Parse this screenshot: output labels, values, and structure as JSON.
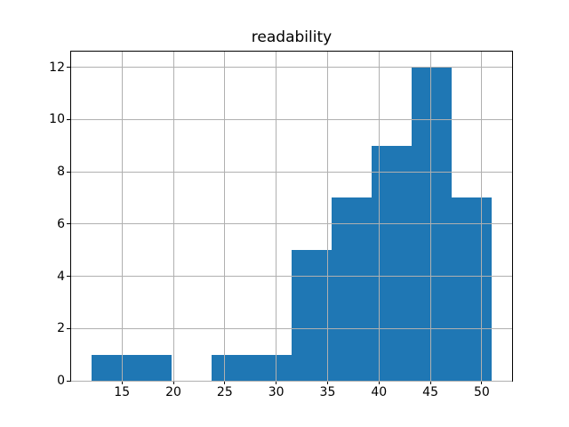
{
  "figure": {
    "background": "#ffffff"
  },
  "chart_data": {
    "type": "bar",
    "subtype": "histogram",
    "title": "readability",
    "xlabel": "",
    "ylabel": "",
    "bin_edges": [
      12.0,
      15.9,
      19.8,
      23.7,
      27.6,
      31.5,
      35.4,
      39.3,
      43.2,
      47.1,
      51.0
    ],
    "counts": [
      1,
      1,
      0,
      1,
      1,
      5,
      7,
      9,
      12,
      7
    ],
    "xlim": [
      10.05,
      52.95
    ],
    "ylim": [
      0,
      12.6
    ],
    "xticks": [
      15,
      20,
      25,
      30,
      35,
      40,
      45,
      50
    ],
    "yticks": [
      0,
      2,
      4,
      6,
      8,
      10,
      12
    ],
    "grid": true,
    "grid_over_bars": true,
    "legend": null,
    "bar_color": "#1f77b4",
    "grid_color": "#b0b0b0",
    "axis_color": "#000000"
  }
}
